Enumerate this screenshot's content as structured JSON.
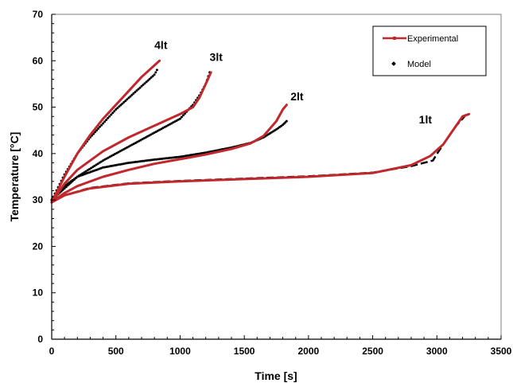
{
  "chart_data": {
    "type": "line",
    "xlabel": "Time [s]",
    "ylabel": "Temperature [°C]",
    "xlim": [
      0,
      3500
    ],
    "ylim": [
      0,
      70
    ],
    "xticks": [
      0,
      500,
      1000,
      1500,
      2000,
      2500,
      3000,
      3500
    ],
    "yticks": [
      0,
      10,
      20,
      30,
      40,
      50,
      60,
      70
    ],
    "grid": false,
    "legend_position": "top-right",
    "legend": [
      "Experimental",
      "Model"
    ],
    "colors": {
      "experimental": "#c0282d",
      "model": "#000000"
    },
    "series": [
      {
        "name": "Experimental",
        "label": "1lt",
        "style": "line",
        "x": [
          0,
          100,
          300,
          600,
          1000,
          1500,
          2000,
          2500,
          2800,
          2950,
          3050,
          3150,
          3200,
          3250
        ],
        "y": [
          29.5,
          31,
          32.5,
          33.5,
          34,
          34.5,
          35,
          35.8,
          37.5,
          39.5,
          42,
          46,
          48,
          48.5
        ]
      },
      {
        "name": "Model",
        "label": "1lt",
        "style": "dash",
        "x": [
          0,
          100,
          300,
          600,
          1000,
          1500,
          2000,
          2500,
          2800,
          2970,
          2990,
          3050,
          3100,
          3150,
          3200,
          3230
        ],
        "y": [
          30,
          31,
          32.6,
          33.6,
          34.1,
          34.6,
          35.1,
          35.9,
          37.3,
          38.5,
          39.5,
          42,
          44,
          46,
          47.5,
          48.5
        ]
      },
      {
        "name": "Experimental",
        "label": "2lt",
        "style": "line",
        "x": [
          0,
          100,
          200,
          400,
          600,
          800,
          1000,
          1200,
          1400,
          1550,
          1650,
          1750,
          1800,
          1830
        ],
        "y": [
          29.5,
          31.5,
          33,
          35,
          36.5,
          37.8,
          38.8,
          39.8,
          41,
          42.2,
          43.8,
          47,
          49.5,
          50.5
        ]
      },
      {
        "name": "Model",
        "label": "2lt",
        "style": "dots",
        "x": [
          0,
          100,
          200,
          400,
          600,
          800,
          1000,
          1200,
          1400,
          1550,
          1650,
          1750,
          1800,
          1830
        ],
        "y": [
          30,
          33,
          35,
          37,
          38,
          38.7,
          39.3,
          40.2,
          41.3,
          42.3,
          43.5,
          45.2,
          46.2,
          47
        ]
      },
      {
        "name": "Experimental",
        "label": "3lt",
        "style": "line",
        "x": [
          0,
          100,
          200,
          400,
          600,
          800,
          1000,
          1100,
          1150,
          1200,
          1240
        ],
        "y": [
          29.5,
          33.5,
          36.5,
          40.5,
          43.5,
          46,
          48.5,
          50,
          52,
          55,
          57.5
        ]
      },
      {
        "name": "Model",
        "label": "3lt",
        "style": "dots",
        "x": [
          0,
          100,
          200,
          400,
          600,
          800,
          1000,
          1100,
          1150,
          1200,
          1230
        ],
        "y": [
          30,
          32.5,
          35,
          38.5,
          41.5,
          44.5,
          47.5,
          50.5,
          52.5,
          55,
          57.5
        ]
      },
      {
        "name": "Experimental",
        "label": "4lt",
        "style": "line",
        "x": [
          0,
          100,
          200,
          300,
          400,
          500,
          600,
          700,
          800,
          840
        ],
        "y": [
          29.5,
          35,
          40,
          44,
          47.5,
          50.5,
          53.5,
          56.5,
          59,
          60
        ]
      },
      {
        "name": "Model",
        "label": "4lt",
        "style": "dots",
        "x": [
          0,
          100,
          200,
          300,
          400,
          500,
          600,
          700,
          800,
          820
        ],
        "y": [
          30,
          35.5,
          40,
          43.5,
          46.5,
          49.5,
          52,
          54.5,
          57,
          58
        ]
      }
    ],
    "annotations": [
      {
        "text": "4lt",
        "x": 800,
        "y": 62.5
      },
      {
        "text": "3lt",
        "x": 1230,
        "y": 60
      },
      {
        "text": "2lt",
        "x": 1860,
        "y": 51.5
      },
      {
        "text": "1lt",
        "x": 2860,
        "y": 46.5
      }
    ]
  }
}
